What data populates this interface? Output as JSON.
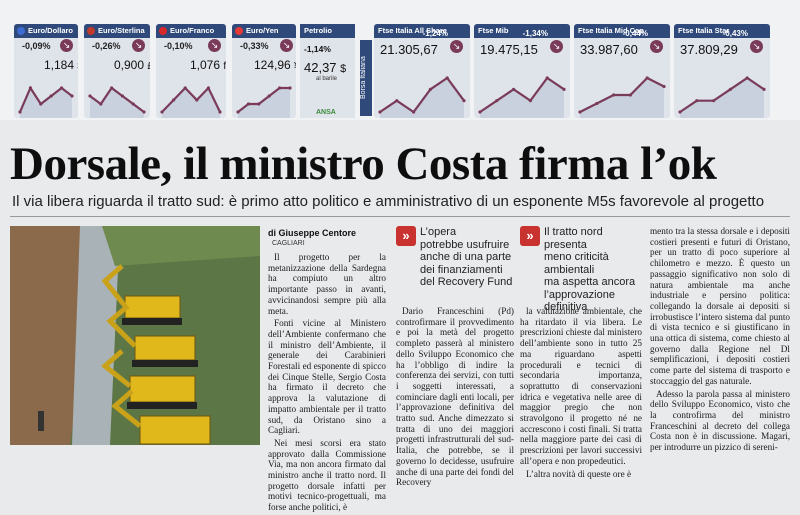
{
  "ticker": {
    "currencies": [
      {
        "name": "Euro/Dollaro",
        "change": "-0,09%",
        "value": "1,184",
        "unit": "$",
        "flag_color": "#3c6bd1",
        "series": [
          2,
          5,
          3,
          4,
          5,
          4
        ]
      },
      {
        "name": "Euro/Sterlina",
        "change": "-0,26%",
        "value": "0,900",
        "unit": "£",
        "flag_color": "#c0392b",
        "series": [
          4,
          3,
          5,
          4,
          3,
          2
        ]
      },
      {
        "name": "Euro/Franco",
        "change": "-0,10%",
        "value": "1,076",
        "unit": "fr",
        "flag_color": "#d62828",
        "series": [
          3,
          4,
          5,
          4,
          5,
          3
        ]
      },
      {
        "name": "Euro/Yen",
        "change": "-0,33%",
        "value": "124,96",
        "unit": "¥",
        "flag_color": "#e53935",
        "series": [
          2,
          3,
          3,
          4,
          5,
          5
        ]
      }
    ],
    "petrolio": {
      "name": "Petrolio",
      "change": "-1,14%",
      "value": "42,37",
      "unit": "$",
      "sub": "al barile",
      "source": "ANSA"
    },
    "borsa_label": "Borsa Italiana",
    "indices": [
      {
        "name": "Ftse Italia All Share",
        "change": "-1,24%",
        "value": "21.305,67",
        "series": [
          2,
          3,
          2,
          4,
          5,
          3
        ]
      },
      {
        "name": "Ftse Mib",
        "change": "-1,34%",
        "value": "19.475,15",
        "series": [
          2,
          3,
          4,
          3,
          5,
          4
        ]
      },
      {
        "name": "Ftse Italia Mid Cap",
        "change": "-0,44%",
        "value": "33.987,60",
        "series": [
          1,
          2,
          3,
          3,
          5,
          4
        ]
      },
      {
        "name": "Ftse Italia Star",
        "change": "-0,43%",
        "value": "37.809,29",
        "series": [
          2,
          3,
          3,
          4,
          5,
          4
        ]
      }
    ]
  },
  "article": {
    "headline": "Dorsale, il ministro Costa firma l’ok",
    "subhead": "Il via libera riguarda il tratto sud: è primo atto politico e amministrativo di un esponente M5s favorevole al progetto",
    "byline": "di Giuseppe Centore",
    "city": "CAGLIARI",
    "pull_quotes": [
      "L’opera\npotrebbe usufruire\nanche di una parte\ndei finanziamenti\ndel Recovery Fund",
      "Il tratto nord\npresenta\nmeno criticità ambientali\nma aspetta ancora\nl’approvazione definitiva"
    ],
    "columns": [
      [
        "Il progetto per la metanizzazione della Sardegna ha compiuto un altro importante passo in avanti, avvicinandosi sempre più alla meta.",
        "Fonti vicine al Ministero dell’Ambiente confermano che il ministro dell’Ambiente, il generale dei Carabinieri Forestali ed esponente di spicco dei Cinque Stelle, Sergio Costa ha firmato il decreto che approva la valutazione di impatto ambientale per il tratto sud, da Oristano sino a Cagliari.",
        "Nei mesi scorsi era stato approvato dalla Commissione Via, ma non ancora firmato dal ministro anche il tratto nord. Il progetto dorsale infatti per motivi tecnico-progettuali, ma forse anche politici, è"
      ],
      [
        "Dario Franceschini (Pd) controfirmare il provvedimento e poi la metà del progetto completo passerà al ministero dello Sviluppo Economico che ha l’obbligo di indire la conferenza dei servizi, con tutti i soggetti interessati, a cominciare dagli enti locali, per l’approvazione definitiva del tratto sud. Anche dimezzato si tratta di uno dei maggiori progetti infrastrutturali del sud-Italia, che potrebbe, se il governo lo decidesse, usufruire anche di una parte dei fondi del Recovery"
      ],
      [
        "la valutazione ambientale, che ha ritardato il via libera. Le prescrizioni chieste dal ministero dell’ambiente sono in tutto 25 ma riguardano aspetti procedurali e tecnici di secondaria importanza, soprattutto di conservazioni idrica e vegetativa nelle aree di maggior pregio che non stravolgono il progetto né ne accrescono i costi finali. Si tratta nella maggiore parte dei casi di prescrizioni per lavori successivi all’opera e non propedeutici.",
        "L’altra novità di queste ore è"
      ],
      [
        "mento tra la stessa dorsale e i depositi costieri presenti e futuri di Oristano, per un tratto di poco superiore al chilometro e mezzo. È questo un passaggio significativo non solo di natura ambientale ma anche industriale e persino politica: collegando la dorsale ai depositi si irrobustisce l’intero sistema dal punto di vista tecnico e si giustificano in una ottica di sistema, come chiesto al governo dalla Regione nel Dl semplificazioni, i depositi costieri come parte del sistema di trasporto e stoccaggio del gas naturale.",
        "Adesso la parola passa al ministero dello Sviluppo Economico, visto che la controfirma del ministro Franceschini al decreto del collega Costa non è in discussione. Magari, per introdurre un pizzico di sereni-"
      ]
    ]
  }
}
